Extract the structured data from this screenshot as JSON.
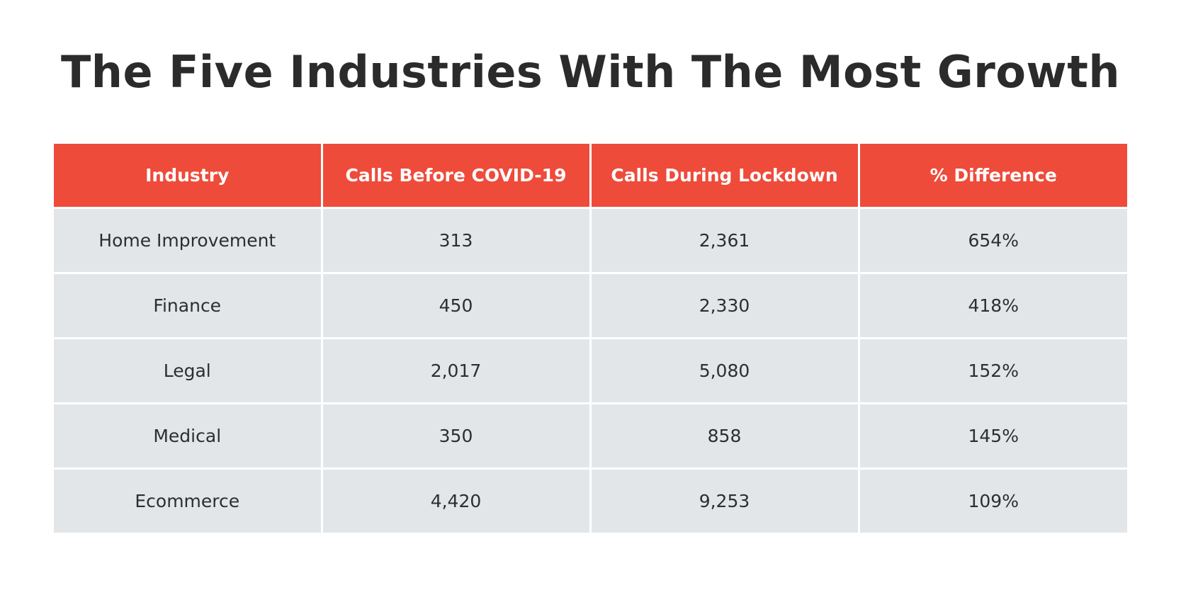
{
  "title": "The Five Industries With The Most Growth",
  "chart_data": {
    "type": "table",
    "title": "The Five Industries With The Most Growth",
    "columns": [
      "Industry",
      "Calls Before COVID-19",
      "Calls During Lockdown",
      "% Difference"
    ],
    "rows": [
      [
        "Home Improvement",
        "313",
        "2,361",
        "654%"
      ],
      [
        "Finance",
        "450",
        "2,330",
        "418%"
      ],
      [
        "Legal",
        "2,017",
        "5,080",
        "152%"
      ],
      [
        "Medical",
        "350",
        "858",
        "145%"
      ],
      [
        "Ecommerce",
        "4,420",
        "9,253",
        "109%"
      ]
    ]
  },
  "colors": {
    "header_background": "#ee4b3b",
    "header_text": "#ffffff",
    "cell_background": "#e2e6e9",
    "cell_text": "#2e2e2e",
    "title_text": "#2b2b2b"
  }
}
